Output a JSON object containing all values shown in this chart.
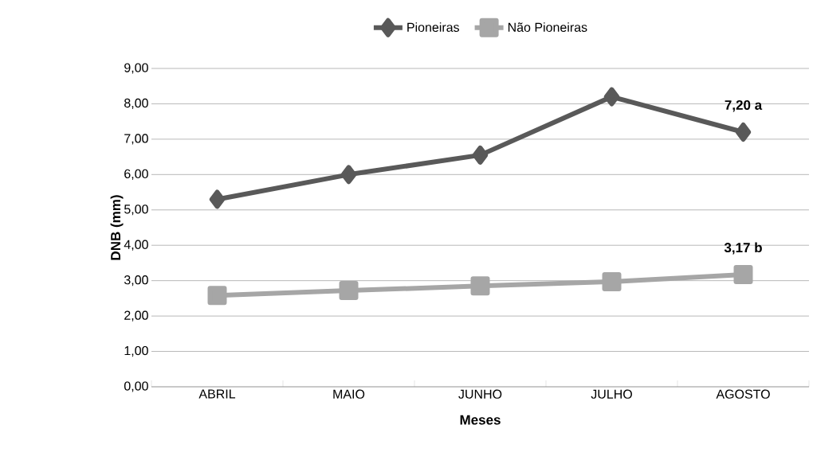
{
  "chart_data": {
    "type": "line",
    "xlabel": "Meses",
    "ylabel": "DNB (mm)",
    "categories": [
      "ABRIL",
      "MAIO",
      "JUNHO",
      "JULHO",
      "AGOSTO"
    ],
    "series": [
      {
        "name": "Pioneiras",
        "color": "#595959",
        "marker": "diamond",
        "values": [
          5.3,
          6.0,
          6.55,
          8.2,
          7.2
        ]
      },
      {
        "name": "Não Pioneiras",
        "color": "#a6a6a6",
        "marker": "square",
        "values": [
          2.58,
          2.72,
          2.85,
          2.97,
          3.17
        ]
      }
    ],
    "ylim": [
      0,
      9
    ],
    "yticks": [
      {
        "value": 0,
        "label": "0,00"
      },
      {
        "value": 1,
        "label": "1,00"
      },
      {
        "value": 2,
        "label": "2,00"
      },
      {
        "value": 3,
        "label": "3,00"
      },
      {
        "value": 4,
        "label": "4,00"
      },
      {
        "value": 5,
        "label": "5,00"
      },
      {
        "value": 6,
        "label": "6,00"
      },
      {
        "value": 7,
        "label": "7,00"
      },
      {
        "value": 8,
        "label": "8,00"
      },
      {
        "value": 9,
        "label": "9,00"
      }
    ],
    "annotations": [
      {
        "text": "7,20 a",
        "x": "AGOSTO",
        "y": 7.2
      },
      {
        "text": "3,17 b",
        "x": "AGOSTO",
        "y": 3.17
      }
    ],
    "grid": "y",
    "legend": "top",
    "line_style": "solid"
  }
}
